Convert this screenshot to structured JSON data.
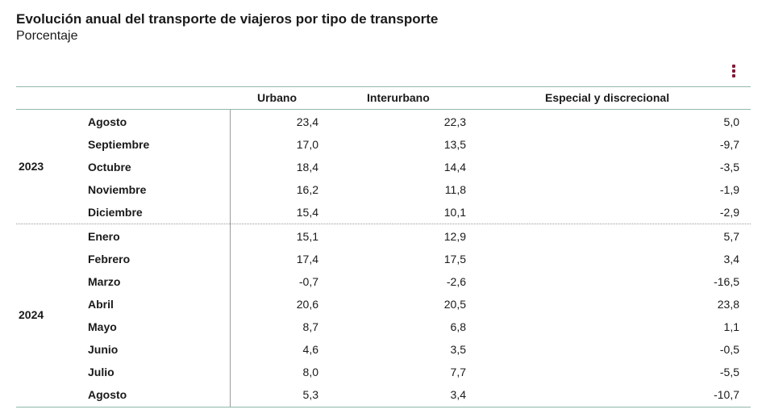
{
  "chart_data": {
    "type": "table",
    "title": "Evolución anual del transporte de viajeros por tipo de transporte",
    "subtitle": "Porcentaje",
    "columns": [
      "Urbano",
      "Interurbano",
      "Especial y discrecional"
    ],
    "groups": [
      {
        "year": "2023",
        "rows": [
          {
            "month": "Agosto",
            "values": [
              "23,4",
              "22,3",
              "5,0"
            ]
          },
          {
            "month": "Septiembre",
            "values": [
              "17,0",
              "13,5",
              "-9,7"
            ]
          },
          {
            "month": "Octubre",
            "values": [
              "18,4",
              "14,4",
              "-3,5"
            ]
          },
          {
            "month": "Noviembre",
            "values": [
              "16,2",
              "11,8",
              "-1,9"
            ]
          },
          {
            "month": "Diciembre",
            "values": [
              "15,4",
              "10,1",
              "-2,9"
            ]
          }
        ]
      },
      {
        "year": "2024",
        "rows": [
          {
            "month": "Enero",
            "values": [
              "15,1",
              "12,9",
              "5,7"
            ]
          },
          {
            "month": "Febrero",
            "values": [
              "17,4",
              "17,5",
              "3,4"
            ]
          },
          {
            "month": "Marzo",
            "values": [
              "-0,7",
              "-2,6",
              "-16,5"
            ]
          },
          {
            "month": "Abril",
            "values": [
              "20,6",
              "20,5",
              "23,8"
            ]
          },
          {
            "month": "Mayo",
            "values": [
              "8,7",
              "6,8",
              "1,1"
            ]
          },
          {
            "month": "Junio",
            "values": [
              "4,6",
              "3,5",
              "-0,5"
            ]
          },
          {
            "month": "Julio",
            "values": [
              "8,0",
              "7,7",
              "-5,5"
            ]
          },
          {
            "month": "Agosto",
            "values": [
              "5,3",
              "3,4",
              "-10,7"
            ]
          }
        ]
      }
    ]
  },
  "ui": {
    "menu_icon": "vertical-ellipsis-icon",
    "accent_color": "#8a1538",
    "rule_color": "#8fb8ac"
  }
}
